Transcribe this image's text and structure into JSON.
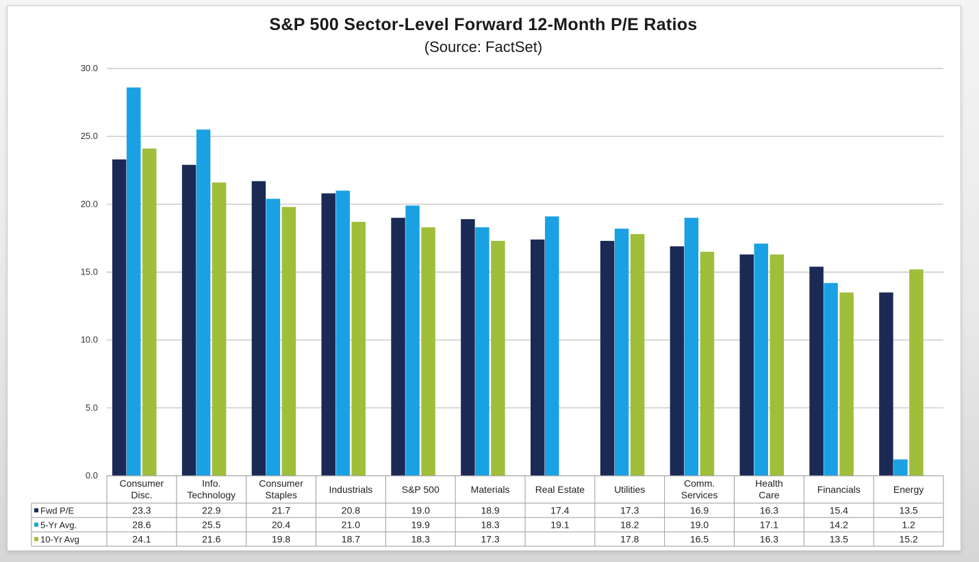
{
  "colors": {
    "fwd_pe": "#1b2a55",
    "five_yr": "#1aa1e4",
    "ten_yr": "#9fbe3a",
    "grid": "#bdbdbd"
  },
  "chart_data": {
    "type": "bar",
    "title": "S&P 500 Sector-Level Forward 12-Month P/E Ratios",
    "subtitle": "(Source: FactSet)",
    "categories": [
      [
        "Consumer",
        "Disc."
      ],
      [
        "Info.",
        "Technology"
      ],
      [
        "Consumer",
        "Staples"
      ],
      [
        "Industrials"
      ],
      [
        "S&P 500"
      ],
      [
        "Materials"
      ],
      [
        "Real Estate"
      ],
      [
        "Utilities"
      ],
      [
        "Comm.",
        "Services"
      ],
      [
        "Health",
        "Care"
      ],
      [
        "Financials"
      ],
      [
        "Energy"
      ]
    ],
    "series": [
      {
        "name": "Fwd P/E",
        "values": [
          23.3,
          22.9,
          21.7,
          20.8,
          19.0,
          18.9,
          17.4,
          17.3,
          16.9,
          16.3,
          15.4,
          13.5
        ],
        "labels": [
          "23.3",
          "22.9",
          "21.7",
          "20.8",
          "19.0",
          "18.9",
          "17.4",
          "17.3",
          "16.9",
          "16.3",
          "15.4",
          "13.5"
        ]
      },
      {
        "name": "5-Yr Avg.",
        "values": [
          28.6,
          25.5,
          20.4,
          21.0,
          19.9,
          18.3,
          19.1,
          18.2,
          19.0,
          17.1,
          14.2,
          1.2
        ],
        "labels": [
          "28.6",
          "25.5",
          "20.4",
          "21.0",
          "19.9",
          "18.3",
          "19.1",
          "18.2",
          "19.0",
          "17.1",
          "14.2",
          "1.2"
        ]
      },
      {
        "name": "10-Yr Avg",
        "values": [
          24.1,
          21.6,
          19.8,
          18.7,
          18.3,
          17.3,
          null,
          17.8,
          16.5,
          16.3,
          13.5,
          15.2
        ],
        "labels": [
          "24.1",
          "21.6",
          "19.8",
          "18.7",
          "18.3",
          "17.3",
          "",
          "17.8",
          "16.5",
          "16.3",
          "13.5",
          "15.2"
        ]
      }
    ],
    "ylim": [
      0,
      30
    ],
    "yticks": [
      "0.0",
      "5.0",
      "10.0",
      "15.0",
      "20.0",
      "25.0",
      "30.0"
    ],
    "ytick_values": [
      0,
      5,
      10,
      15,
      20,
      25,
      30
    ],
    "grid": true,
    "legend": "data-table"
  }
}
